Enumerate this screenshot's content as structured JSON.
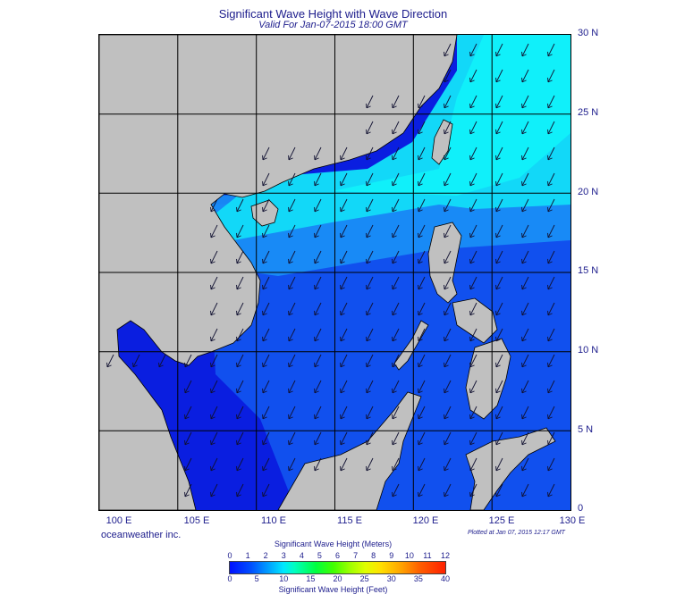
{
  "header": {
    "title": "Significant Wave Height with Wave Direction",
    "subtitle": "Valid For Jan-07-2015 18:00 GMT"
  },
  "map": {
    "lat_labels": [
      "30 N",
      "25 N",
      "20 N",
      "15 N",
      "10 N",
      "5 N",
      "0"
    ],
    "lon_labels": [
      "100 E",
      "105 E",
      "110 E",
      "115 E",
      "120 E",
      "125 E",
      "130 E"
    ],
    "colors": {
      "land": "#c0c0c0",
      "deep_blue": "#0a1ee0",
      "mid_blue": "#1560f0",
      "light_blue": "#18a8f8",
      "cyan": "#10e8f8",
      "arrow": "#101030"
    },
    "wave_direction": "from north-east"
  },
  "footer": {
    "credit": "oceanweather inc.",
    "plotted": "Plotted at Jan 07, 2015 12:17 GMT"
  },
  "colorbar": {
    "title_meters": "Significant Wave Height (Meters)",
    "title_feet": "Significant Wave Height (Feet)",
    "meters_ticks": [
      "0",
      "1",
      "2",
      "3",
      "4",
      "5",
      "6",
      "7",
      "8",
      "9",
      "10",
      "11",
      "12"
    ],
    "feet_ticks": [
      "0",
      "5",
      "10",
      "15",
      "20",
      "25",
      "30",
      "35",
      "40"
    ]
  }
}
